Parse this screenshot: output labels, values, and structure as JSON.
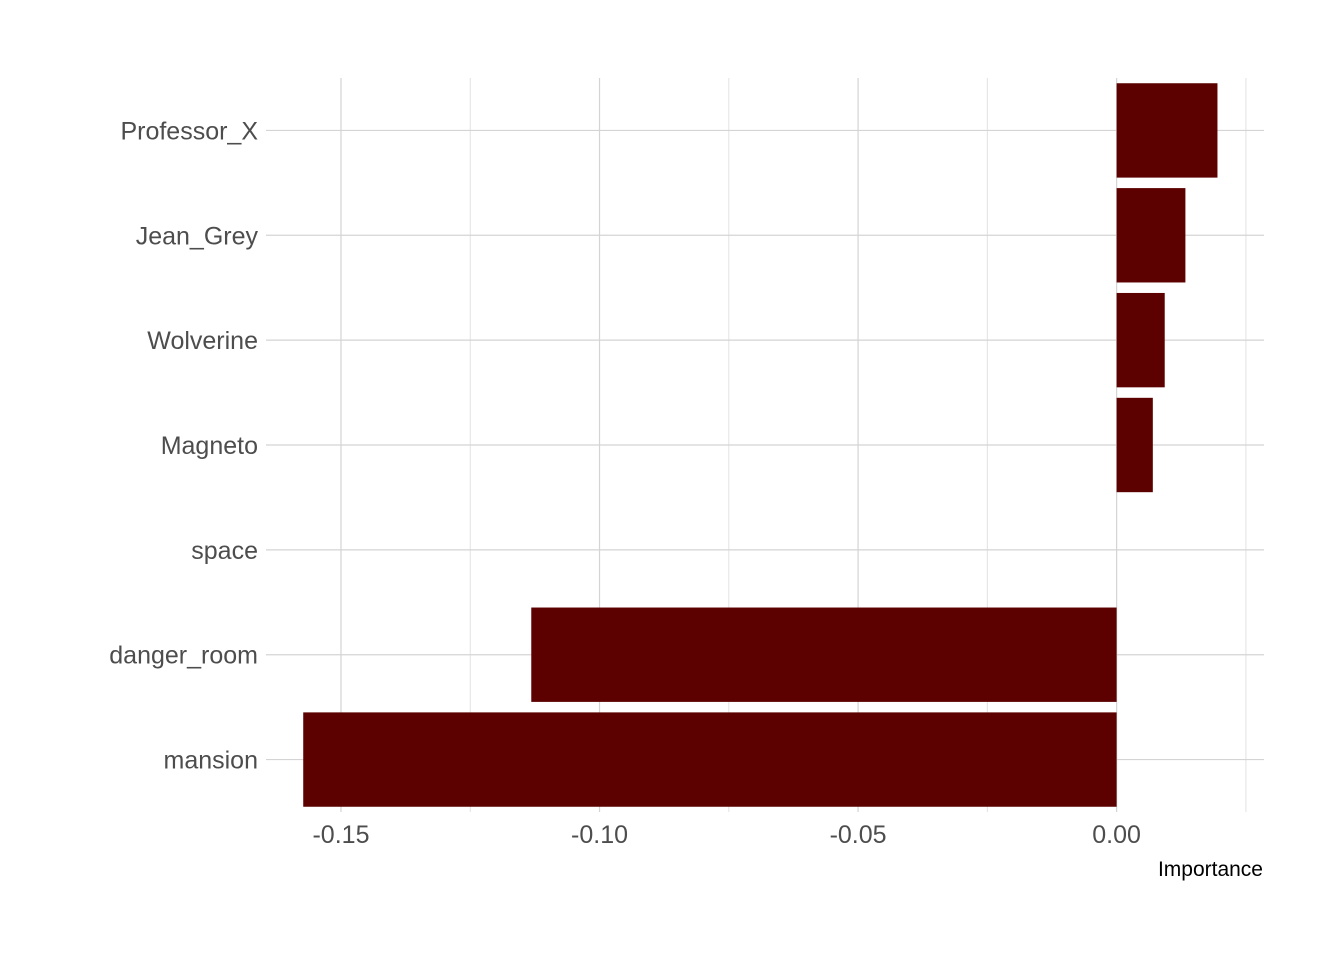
{
  "chart_data": {
    "type": "bar",
    "orientation": "horizontal",
    "categories": [
      "Professor_X",
      "Jean_Grey",
      "Wolverine",
      "Magneto",
      "space",
      "danger_room",
      "mansion"
    ],
    "values": [
      0.0195,
      0.0133,
      0.0093,
      0.007,
      0.0,
      -0.1132,
      -0.1573
    ],
    "xlabel": "Importance",
    "ylabel": "",
    "xlim": [
      -0.1645,
      0.0285
    ],
    "x_ticks": [
      -0.15,
      -0.1,
      -0.05,
      0.0
    ],
    "x_tick_labels": [
      "-0.15",
      "-0.10",
      "-0.05",
      "0.00"
    ],
    "grid": true,
    "legend": "none",
    "bar_color": "#5c0000"
  }
}
